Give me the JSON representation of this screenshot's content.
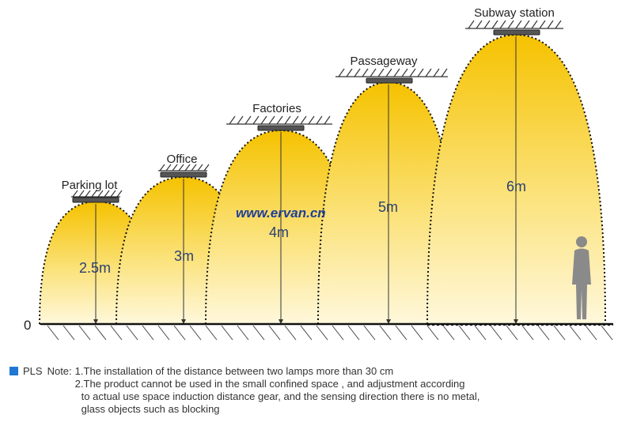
{
  "diagram": {
    "website": "www.ervan.cn",
    "zero_label": "0",
    "colors": {
      "beam_top": "#f5c200",
      "beam_bottom": "#fff6cf",
      "height_text": "#2b3f73",
      "person": "#8a8a8a"
    },
    "scenes": [
      {
        "place": "Parking lot",
        "height": "2.5m",
        "height_m": 2.5
      },
      {
        "place": "Office",
        "height": "3m",
        "height_m": 3
      },
      {
        "place": "Factories",
        "height": "4m",
        "height_m": 4
      },
      {
        "place": "Passageway",
        "height": "5m",
        "height_m": 5
      },
      {
        "place": "Subway station",
        "height": "6m",
        "height_m": 6
      }
    ]
  },
  "notes": {
    "product": "PLS",
    "label": "Note:",
    "line1": "1.The installation of the distance between two lamps more than 30 cm",
    "line2": "2.The product cannot be used in the small  confined space , and adjustment according",
    "line3": "to actual use space induction distance gear, and the sensing direction there is no metal,",
    "line4": "glass objects such as blocking"
  }
}
